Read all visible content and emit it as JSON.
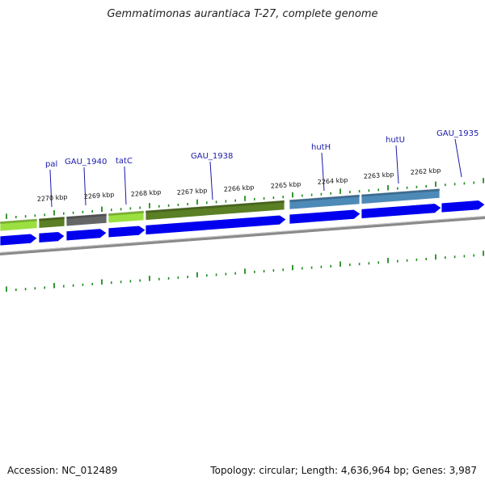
{
  "title": "Gemmatimonas aurantiaca T-27, complete genome",
  "accession": "Accession: NC_012489",
  "summary": "Topology: circular; Length: 4,636,964 bp; Genes: 3,987",
  "colors": {
    "tick": "#1e8c1e",
    "backbone": "#8a8a8a",
    "cds_arrow": "#0000ee",
    "label": "#1a1aaa",
    "cog_lime": "#9be040",
    "cog_olive": "#5a7f24",
    "cog_gray": "#666666",
    "cog_steelblue": "#4d8ab8"
  },
  "kbp_ticks": [
    {
      "label": "2270 kbp"
    },
    {
      "label": "2269 kbp"
    },
    {
      "label": "2268 kbp"
    },
    {
      "label": "2267 kbp"
    },
    {
      "label": "2266 kbp"
    },
    {
      "label": "2265 kbp"
    },
    {
      "label": "2264 kbp"
    },
    {
      "label": "2263 kbp"
    },
    {
      "label": "2262 kbp"
    }
  ],
  "gene_labels": [
    {
      "name": "pal"
    },
    {
      "name": "GAU_1940"
    },
    {
      "name": "tatC"
    },
    {
      "name": "GAU_1938"
    },
    {
      "name": "hutH"
    },
    {
      "name": "hutU"
    },
    {
      "name": "GAU_1935"
    }
  ],
  "feature_tracks": {
    "cog_colors": [
      "cog_lime",
      "cog_olive",
      "cog_gray",
      "cog_lime",
      "cog_olive",
      "cog_steelblue",
      "cog_steelblue"
    ],
    "cds_count": 8
  }
}
